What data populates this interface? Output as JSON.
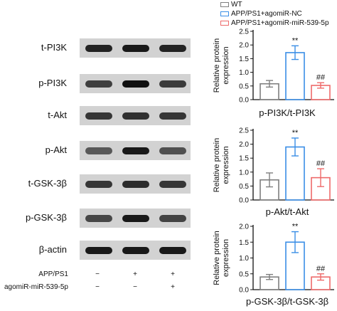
{
  "legend": [
    {
      "label": "WT",
      "color": "#7f7f7f"
    },
    {
      "label": "APP/PS1+agomiR-NC",
      "color": "#3a8ee6"
    },
    {
      "label": "APP/PS1+agomiR-miR-539-5p",
      "color": "#ee6a6a"
    }
  ],
  "blots": [
    {
      "label": "t-PI3K",
      "intensity": [
        0.85,
        0.9,
        0.85
      ]
    },
    {
      "label": "p-PI3K",
      "intensity": [
        0.7,
        0.95,
        0.72
      ]
    },
    {
      "label": "t-Akt",
      "intensity": [
        0.75,
        0.78,
        0.75
      ]
    },
    {
      "label": "p-Akt",
      "intensity": [
        0.55,
        0.9,
        0.6
      ]
    },
    {
      "label": "t-GSK-3β",
      "intensity": [
        0.75,
        0.8,
        0.75
      ]
    },
    {
      "label": "p-GSK-3β",
      "intensity": [
        0.65,
        0.9,
        0.68
      ]
    },
    {
      "label": "β-actin",
      "intensity": [
        0.9,
        0.9,
        0.9
      ]
    }
  ],
  "conditions": [
    {
      "label": "APP/PS1",
      "marks": [
        "−",
        "+",
        "+"
      ]
    },
    {
      "label": "agomiR-miR-539-5p",
      "marks": [
        "−",
        "−",
        "+"
      ]
    }
  ],
  "chart_data": [
    {
      "type": "bar",
      "title": "p-PI3K/t-PI3K",
      "ylabel": "Relative protein expression",
      "ylim": [
        0,
        2.5
      ],
      "yticks": [
        "0.0",
        "0.5",
        "1.0",
        "1.5",
        "2.0",
        "2.5"
      ],
      "series": [
        {
          "name": "WT",
          "value": 0.58,
          "error": 0.12,
          "color": "#7f7f7f",
          "annotation": ""
        },
        {
          "name": "APP/PS1+agomiR-NC",
          "value": 1.72,
          "error": 0.25,
          "color": "#3a8ee6",
          "annotation": "**"
        },
        {
          "name": "APP/PS1+agomiR-miR-539-5p",
          "value": 0.52,
          "error": 0.1,
          "color": "#ee6a6a",
          "annotation": "##"
        }
      ]
    },
    {
      "type": "bar",
      "title": "p-Akt/t-Akt",
      "ylabel": "Relative protein expression",
      "ylim": [
        0,
        2.5
      ],
      "yticks": [
        "0.0",
        "0.5",
        "1.0",
        "1.5",
        "2.0",
        "2.5"
      ],
      "series": [
        {
          "name": "WT",
          "value": 0.72,
          "error": 0.25,
          "color": "#7f7f7f",
          "annotation": ""
        },
        {
          "name": "APP/PS1+agomiR-NC",
          "value": 1.9,
          "error": 0.32,
          "color": "#3a8ee6",
          "annotation": "**"
        },
        {
          "name": "APP/PS1+agomiR-miR-539-5p",
          "value": 0.8,
          "error": 0.32,
          "color": "#ee6a6a",
          "annotation": "##"
        }
      ]
    },
    {
      "type": "bar",
      "title": "p-GSK-3β/t-GSK-3β",
      "ylabel": "Relative protein expression",
      "ylim": [
        0,
        2.0
      ],
      "yticks": [
        "0.0",
        "0.5",
        "1.0",
        "1.5",
        "2.0"
      ],
      "series": [
        {
          "name": "WT",
          "value": 0.4,
          "error": 0.08,
          "color": "#7f7f7f",
          "annotation": ""
        },
        {
          "name": "APP/PS1+agomiR-NC",
          "value": 1.5,
          "error": 0.33,
          "color": "#3a8ee6",
          "annotation": "**"
        },
        {
          "name": "APP/PS1+agomiR-miR-539-5p",
          "value": 0.4,
          "error": 0.1,
          "color": "#ee6a6a",
          "annotation": "##"
        }
      ]
    }
  ]
}
